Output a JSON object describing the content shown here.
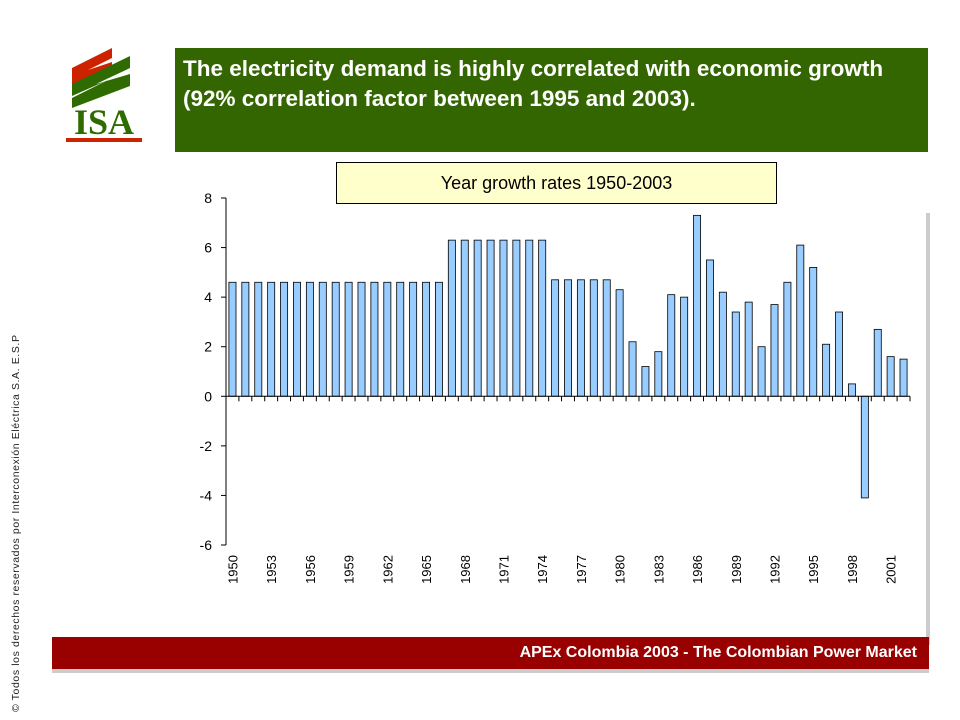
{
  "header": {
    "logo_text": "ISA",
    "title": "The electricity demand is highly correlated with economic growth (92% correlation factor between 1995 and 2003)."
  },
  "side_note": "© Todos los derechos reservados por Interconexión Eléctrica S.A. E.S.P",
  "footer": {
    "text": "APEx Colombia 2003 - The Colombian Power Market"
  },
  "colors": {
    "title_bg": "#336600",
    "footer_bg": "#990000",
    "bar_fill": "#99ccff",
    "logo_red": "#cc2200",
    "logo_green": "#2e6b00"
  },
  "chart_data": {
    "type": "bar",
    "title": "Year growth rates 1950-2003",
    "xlabel": "",
    "ylabel": "",
    "ylim": [
      -6,
      8
    ],
    "yticks": [
      "8",
      "6",
      "4",
      "2",
      "0",
      "-2",
      "-4",
      "-6"
    ],
    "x_tick_labels": [
      "1950",
      "1953",
      "1956",
      "1959",
      "1962",
      "1965",
      "1968",
      "1971",
      "1974",
      "1977",
      "1980",
      "1983",
      "1986",
      "1989",
      "1992",
      "1995",
      "1998",
      "2001"
    ],
    "categories": [
      1950,
      1951,
      1952,
      1953,
      1954,
      1955,
      1956,
      1957,
      1958,
      1959,
      1960,
      1961,
      1962,
      1963,
      1964,
      1965,
      1966,
      1967,
      1968,
      1969,
      1970,
      1971,
      1972,
      1973,
      1974,
      1975,
      1976,
      1977,
      1978,
      1979,
      1980,
      1981,
      1982,
      1983,
      1984,
      1985,
      1986,
      1987,
      1988,
      1989,
      1990,
      1991,
      1992,
      1993,
      1994,
      1995,
      1996,
      1997,
      1998,
      1999,
      2000,
      2001,
      2002
    ],
    "values": [
      4.6,
      4.6,
      4.6,
      4.6,
      4.6,
      4.6,
      4.6,
      4.6,
      4.6,
      4.6,
      4.6,
      4.6,
      4.6,
      4.6,
      4.6,
      4.6,
      4.6,
      6.3,
      6.3,
      6.3,
      6.3,
      6.3,
      6.3,
      6.3,
      6.3,
      4.7,
      4.7,
      4.7,
      4.7,
      4.7,
      4.3,
      2.2,
      1.2,
      1.8,
      4.1,
      4.0,
      7.3,
      5.5,
      4.2,
      3.4,
      3.8,
      2.0,
      3.7,
      4.6,
      6.1,
      5.2,
      2.1,
      3.4,
      0.5,
      -4.1,
      2.7,
      1.6,
      1.5
    ],
    "grid": false,
    "legend": "none"
  }
}
